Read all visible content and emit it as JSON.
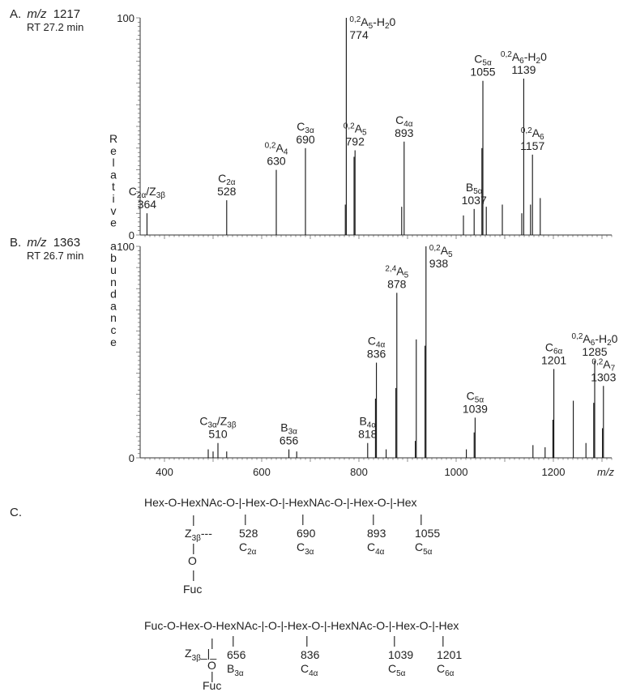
{
  "chart_data": [
    {
      "type": "bar",
      "panel": "A.",
      "title_prefix": "m/z",
      "title_mz": "1217",
      "subtitle": "RT 27.2 min",
      "ylim": [
        0,
        100
      ],
      "y_tick_labels": [
        "100",
        "0"
      ],
      "peaks": [
        {
          "mz": 364,
          "rel": 10
        },
        {
          "mz": 528,
          "rel": 16
        },
        {
          "mz": 630,
          "rel": 30
        },
        {
          "mz": 690,
          "rel": 40
        },
        {
          "mz": 772,
          "rel": 14
        },
        {
          "mz": 774,
          "rel": 100
        },
        {
          "mz": 790,
          "rel": 36
        },
        {
          "mz": 792,
          "rel": 39
        },
        {
          "mz": 888,
          "rel": 13
        },
        {
          "mz": 893,
          "rel": 43
        },
        {
          "mz": 1015,
          "rel": 9
        },
        {
          "mz": 1037,
          "rel": 12
        },
        {
          "mz": 1053,
          "rel": 40
        },
        {
          "mz": 1055,
          "rel": 71
        },
        {
          "mz": 1062,
          "rel": 13
        },
        {
          "mz": 1095,
          "rel": 14
        },
        {
          "mz": 1135,
          "rel": 10
        },
        {
          "mz": 1139,
          "rel": 72
        },
        {
          "mz": 1153,
          "rel": 14
        },
        {
          "mz": 1157,
          "rel": 37
        },
        {
          "mz": 1173,
          "rel": 17
        }
      ],
      "labels": [
        {
          "mz": 364,
          "main": "C",
          "sub": "2α",
          "suffix": "/Z",
          "suffix_sub": "3β",
          "value": "364"
        },
        {
          "mz": 528,
          "main": "C",
          "sub": "2α",
          "value": "528"
        },
        {
          "mz": 630,
          "sup": "0,2",
          "main": "A",
          "sub": "4",
          "value": "630"
        },
        {
          "mz": 690,
          "main": "C",
          "sub": "3α",
          "value": "690"
        },
        {
          "mz": 774,
          "sup": "0,2",
          "main": "A",
          "sub": "5",
          "suffix": "-H",
          "suffix_sub": "2",
          "suffix2": "0",
          "value": "774"
        },
        {
          "mz": 792,
          "sup": "0,2",
          "main": "A",
          "sub": "5",
          "value": "792"
        },
        {
          "mz": 893,
          "main": "C",
          "sub": "4α",
          "value": "893"
        },
        {
          "mz": 1037,
          "main": "B",
          "sub": "5α",
          "value": "1037"
        },
        {
          "mz": 1055,
          "main": "C",
          "sub": "5α",
          "value": "1055"
        },
        {
          "mz": 1139,
          "sup": "0,2",
          "main": "A",
          "sub": "6",
          "suffix": "-H",
          "suffix_sub": "2",
          "suffix2": "0",
          "value": "1139"
        },
        {
          "mz": 1157,
          "sup": "0,2",
          "main": "A",
          "sub": "6",
          "value": "1157"
        }
      ]
    },
    {
      "type": "bar",
      "panel": "B.",
      "title_prefix": "m/z",
      "title_mz": "1363",
      "subtitle": "RT 26.7 min",
      "xlabel": "m/z",
      "ylim": [
        0,
        100
      ],
      "xlim": [
        350,
        1320
      ],
      "x_ticks": [
        400,
        600,
        800,
        1000,
        1200
      ],
      "y_tick_labels": [
        "100",
        "0"
      ],
      "peaks": [
        {
          "mz": 490,
          "rel": 4
        },
        {
          "mz": 500,
          "rel": 3
        },
        {
          "mz": 510,
          "rel": 7
        },
        {
          "mz": 528,
          "rel": 3
        },
        {
          "mz": 656,
          "rel": 4
        },
        {
          "mz": 672,
          "rel": 3
        },
        {
          "mz": 818,
          "rel": 7
        },
        {
          "mz": 834,
          "rel": 28
        },
        {
          "mz": 836,
          "rel": 45
        },
        {
          "mz": 856,
          "rel": 4
        },
        {
          "mz": 876,
          "rel": 33
        },
        {
          "mz": 878,
          "rel": 78
        },
        {
          "mz": 916,
          "rel": 8
        },
        {
          "mz": 918,
          "rel": 56
        },
        {
          "mz": 936,
          "rel": 53
        },
        {
          "mz": 938,
          "rel": 100
        },
        {
          "mz": 1021,
          "rel": 4
        },
        {
          "mz": 1037,
          "rel": 12
        },
        {
          "mz": 1039,
          "rel": 19
        },
        {
          "mz": 1158,
          "rel": 6
        },
        {
          "mz": 1183,
          "rel": 5
        },
        {
          "mz": 1199,
          "rel": 18
        },
        {
          "mz": 1201,
          "rel": 42
        },
        {
          "mz": 1241,
          "rel": 27
        },
        {
          "mz": 1267,
          "rel": 7
        },
        {
          "mz": 1283,
          "rel": 26
        },
        {
          "mz": 1285,
          "rel": 46
        },
        {
          "mz": 1301,
          "rel": 14
        },
        {
          "mz": 1303,
          "rel": 34
        }
      ],
      "labels": [
        {
          "mz": 510,
          "main": "C",
          "sub": "3α",
          "suffix": "/Z",
          "suffix_sub": "3β",
          "value": "510"
        },
        {
          "mz": 656,
          "main": "B",
          "sub": "3α",
          "value": "656"
        },
        {
          "mz": 818,
          "main": "B",
          "sub": "4α",
          "value": "818"
        },
        {
          "mz": 836,
          "main": "C",
          "sub": "4α",
          "value": "836"
        },
        {
          "mz": 878,
          "sup": "2,4",
          "main": "A",
          "sub": "5",
          "value": "878"
        },
        {
          "mz": 938,
          "sup": "0,2",
          "main": "A",
          "sub": "5",
          "value": "938"
        },
        {
          "mz": 1039,
          "main": "C",
          "sub": "5α",
          "value": "1039"
        },
        {
          "mz": 1201,
          "main": "C",
          "sub": "6α",
          "value": "1201"
        },
        {
          "mz": 1285,
          "sup": "0,2",
          "main": "A",
          "sub": "6",
          "suffix": "-H",
          "suffix_sub": "2",
          "suffix2": "0",
          "value": "1285"
        },
        {
          "mz": 1303,
          "sup": "0,2",
          "main": "A",
          "sub": "7",
          "value": "1303"
        }
      ]
    }
  ],
  "y_axis_label": "Relative abundance",
  "x_tick_labels": [
    "400",
    "600",
    "800",
    "1000",
    "1200"
  ],
  "panel_c": {
    "letter": "C.",
    "structure1": {
      "chain": "Hex-O-HexNAc-O-|-Hex-O-|-HexNAc-O-|-Hex-O-|-Hex",
      "z_main": "Z",
      "z_sub": "3β",
      "z_link": "---",
      "bar": "|",
      "o": "O",
      "fuc": "Fuc",
      "fragments": [
        {
          "value": "528",
          "main": "C",
          "sub": "2α"
        },
        {
          "value": "690",
          "main": "C",
          "sub": "3α"
        },
        {
          "value": "893",
          "main": "C",
          "sub": "4α"
        },
        {
          "value": "1055",
          "main": "C",
          "sub": "5α"
        }
      ]
    },
    "structure2": {
      "chain": "Fuc-O-Hex-O-HexNAc-|-O-|-Hex-O-|-HexNAc-O-|-Hex-O-|-Hex",
      "z_main": "Z",
      "z_sub": "3β",
      "z_link": "_|_",
      "o": "O",
      "fuc": "Fuc",
      "fragments": [
        {
          "value": "656",
          "main": "B",
          "sub": "3α"
        },
        {
          "value": "836",
          "main": "C",
          "sub": "4α"
        },
        {
          "value": "1039",
          "main": "C",
          "sub": "5α"
        },
        {
          "value": "1201",
          "main": "C",
          "sub": "6α"
        }
      ]
    }
  }
}
